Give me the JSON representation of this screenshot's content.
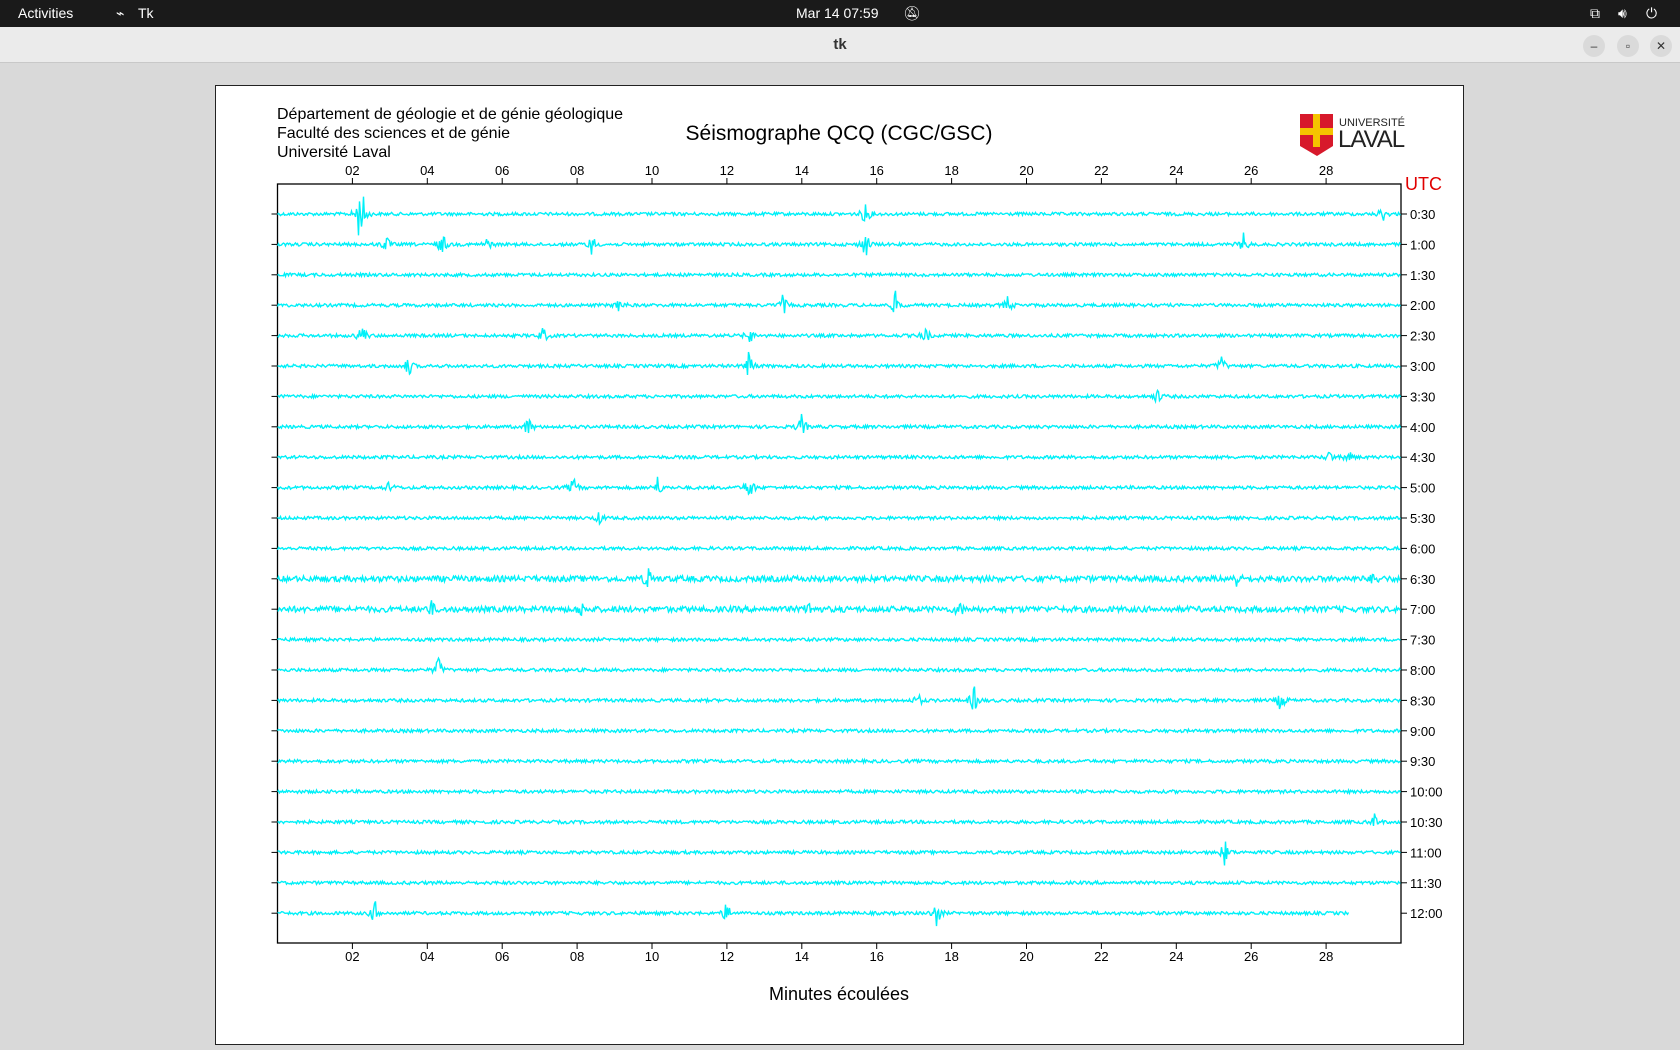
{
  "topbar": {
    "activities": "Activities",
    "app": "Tk",
    "datetime": "Mar 14  07:59"
  },
  "window": {
    "title": "tk"
  },
  "header": {
    "lines": [
      "Département de géologie et de génie géologique",
      "Faculté des sciences et de génie",
      "Université Laval"
    ],
    "title": "Séismographe QCQ (CGC/GSC)",
    "logo_text": [
      "UNIVERSITÉ",
      "LAVAL"
    ]
  },
  "chart_data": {
    "type": "line",
    "title": "Séismographe QCQ (CGC/GSC)",
    "xlabel": "Minutes écoulées",
    "ylabel": "UTC",
    "xlim": [
      0,
      30
    ],
    "xticks": [
      "02",
      "04",
      "06",
      "08",
      "10",
      "12",
      "14",
      "16",
      "18",
      "20",
      "22",
      "24",
      "26",
      "28"
    ],
    "rows": [
      "0:30",
      "1:00",
      "1:30",
      "2:00",
      "2:30",
      "3:00",
      "3:30",
      "4:00",
      "4:30",
      "5:00",
      "5:30",
      "6:00",
      "6:30",
      "7:00",
      "7:30",
      "8:00",
      "8:30",
      "9:00",
      "9:30",
      "10:00",
      "10:30",
      "11:00",
      "11:30",
      "12:00"
    ],
    "trace_color": "#00f0f8",
    "last_row_end_minute": 28.6,
    "events": [
      [
        [
          2.17,
          1
        ],
        [
          2.3,
          0.6
        ],
        [
          15.7,
          0.6
        ],
        [
          29.5,
          0.4
        ]
      ],
      [
        [
          2.9,
          0.4
        ],
        [
          4.4,
          0.6
        ],
        [
          5.6,
          0.3
        ],
        [
          8.4,
          0.5
        ],
        [
          15.7,
          0.7
        ],
        [
          25.8,
          0.5
        ]
      ],
      [],
      [
        [
          9.15,
          0.4
        ],
        [
          13.5,
          0.5
        ],
        [
          16.5,
          0.6
        ],
        [
          19.5,
          0.4
        ]
      ],
      [
        [
          2.26,
          0.6
        ],
        [
          7.1,
          0.4
        ],
        [
          12.6,
          0.4
        ],
        [
          17.3,
          0.4
        ]
      ],
      [
        [
          3.5,
          0.5
        ],
        [
          12.6,
          0.8
        ],
        [
          25.2,
          0.5
        ]
      ],
      [
        [
          23.5,
          0.35
        ]
      ],
      [
        [
          6.7,
          0.5
        ],
        [
          14.0,
          0.6
        ]
      ],
      [
        [
          28.1,
          0.3
        ],
        [
          28.6,
          0.3
        ]
      ],
      [
        [
          3.0,
          0.3
        ],
        [
          7.9,
          0.5
        ],
        [
          10.15,
          0.5
        ],
        [
          12.6,
          0.7
        ]
      ],
      [
        [
          8.6,
          0.3
        ]
      ],
      [],
      [
        [
          9.9,
          0.5
        ],
        [
          25.6,
          0.35
        ],
        [
          29.3,
          0.3
        ]
      ],
      [
        [
          4.1,
          0.35
        ],
        [
          8.1,
          0.3
        ],
        [
          14.2,
          0.3
        ],
        [
          18.2,
          0.35
        ]
      ],
      [],
      [
        [
          4.3,
          0.6
        ]
      ],
      [
        [
          17.1,
          0.35
        ],
        [
          18.6,
          0.7
        ],
        [
          26.8,
          0.6
        ]
      ],
      [],
      [],
      [],
      [
        [
          29.3,
          0.35
        ]
      ],
      [
        [
          25.3,
          0.65
        ]
      ],
      [],
      [
        [
          2.6,
          0.6
        ],
        [
          12.0,
          0.55
        ],
        [
          17.6,
          0.65
        ]
      ]
    ]
  }
}
